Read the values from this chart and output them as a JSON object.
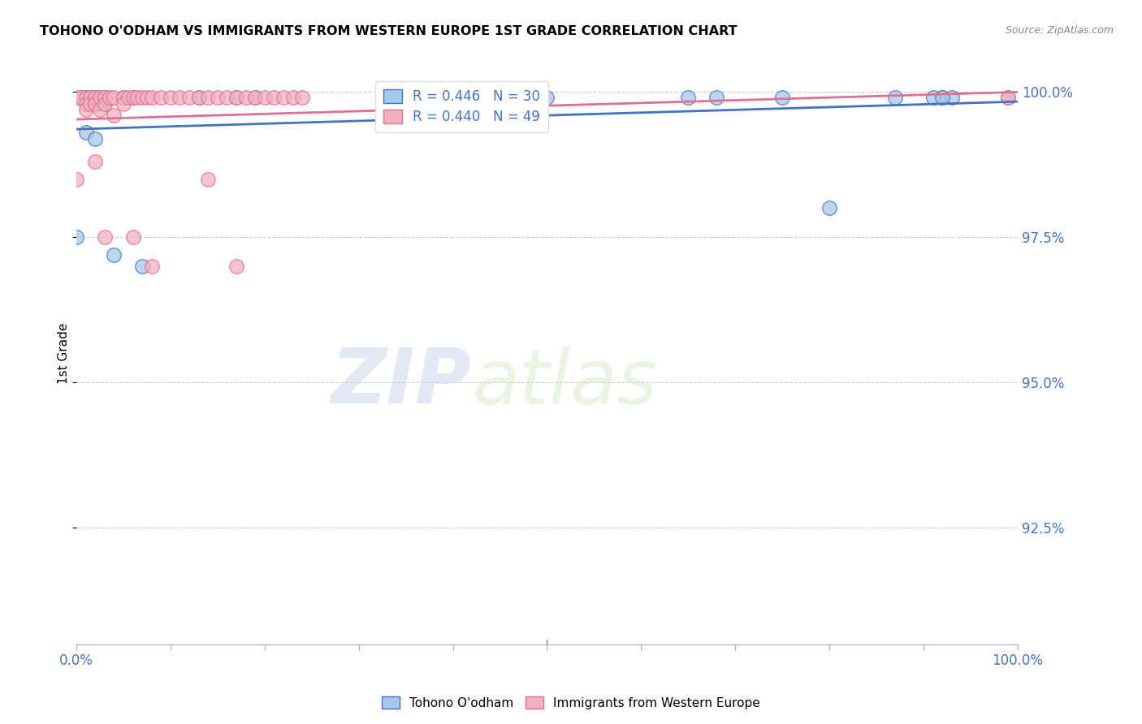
{
  "title": "TOHONO O'ODHAM VS IMMIGRANTS FROM WESTERN EUROPE 1ST GRADE CORRELATION CHART",
  "source": "Source: ZipAtlas.com",
  "ylabel": "1st Grade",
  "xlim": [
    0.0,
    1.0
  ],
  "ylim": [
    0.905,
    1.005
  ],
  "yticks": [
    0.925,
    0.95,
    0.975,
    1.0
  ],
  "ytick_labels": [
    "92.5%",
    "95.0%",
    "97.5%",
    "100.0%"
  ],
  "blue_color": "#a8c8e8",
  "pink_color": "#f0b0c0",
  "blue_line_color": "#4472c4",
  "pink_line_color": "#e07090",
  "R_blue": 0.446,
  "N_blue": 30,
  "R_pink": 0.44,
  "N_pink": 49,
  "blue_x": [
    0.005,
    0.01,
    0.015,
    0.02,
    0.02,
    0.025,
    0.03,
    0.03,
    0.05,
    0.06,
    0.13,
    0.17,
    0.19,
    0.37,
    0.5,
    0.65,
    0.68,
    0.75,
    0.8,
    0.87,
    0.92,
    0.93,
    0.99,
    0.0,
    0.01,
    0.02,
    0.04,
    0.07,
    0.91,
    0.92
  ],
  "blue_y": [
    0.999,
    0.999,
    0.999,
    0.999,
    0.998,
    0.999,
    0.999,
    0.998,
    0.999,
    0.999,
    0.999,
    0.999,
    0.999,
    0.999,
    0.999,
    0.999,
    0.999,
    0.999,
    0.98,
    0.999,
    0.999,
    0.999,
    0.999,
    0.975,
    0.993,
    0.992,
    0.972,
    0.97,
    0.999,
    0.999
  ],
  "pink_x": [
    0.0,
    0.005,
    0.01,
    0.01,
    0.01,
    0.015,
    0.015,
    0.02,
    0.02,
    0.025,
    0.025,
    0.03,
    0.03,
    0.035,
    0.04,
    0.04,
    0.05,
    0.05,
    0.055,
    0.06,
    0.065,
    0.07,
    0.075,
    0.08,
    0.09,
    0.1,
    0.11,
    0.12,
    0.13,
    0.14,
    0.15,
    0.16,
    0.17,
    0.18,
    0.19,
    0.2,
    0.21,
    0.22,
    0.23,
    0.24,
    0.0,
    0.02,
    0.03,
    0.06,
    0.08,
    0.14,
    0.17,
    0.4,
    0.99
  ],
  "pink_y": [
    0.999,
    0.999,
    0.999,
    0.998,
    0.997,
    0.999,
    0.998,
    0.999,
    0.998,
    0.999,
    0.997,
    0.999,
    0.998,
    0.999,
    0.999,
    0.996,
    0.999,
    0.998,
    0.999,
    0.999,
    0.999,
    0.999,
    0.999,
    0.999,
    0.999,
    0.999,
    0.999,
    0.999,
    0.999,
    0.999,
    0.999,
    0.999,
    0.999,
    0.999,
    0.999,
    0.999,
    0.999,
    0.999,
    0.999,
    0.999,
    0.985,
    0.988,
    0.975,
    0.975,
    0.97,
    0.985,
    0.97,
    0.999,
    0.999
  ],
  "watermark_zip": "ZIP",
  "watermark_atlas": "atlas",
  "background_color": "#ffffff",
  "grid_color": "#cccccc"
}
